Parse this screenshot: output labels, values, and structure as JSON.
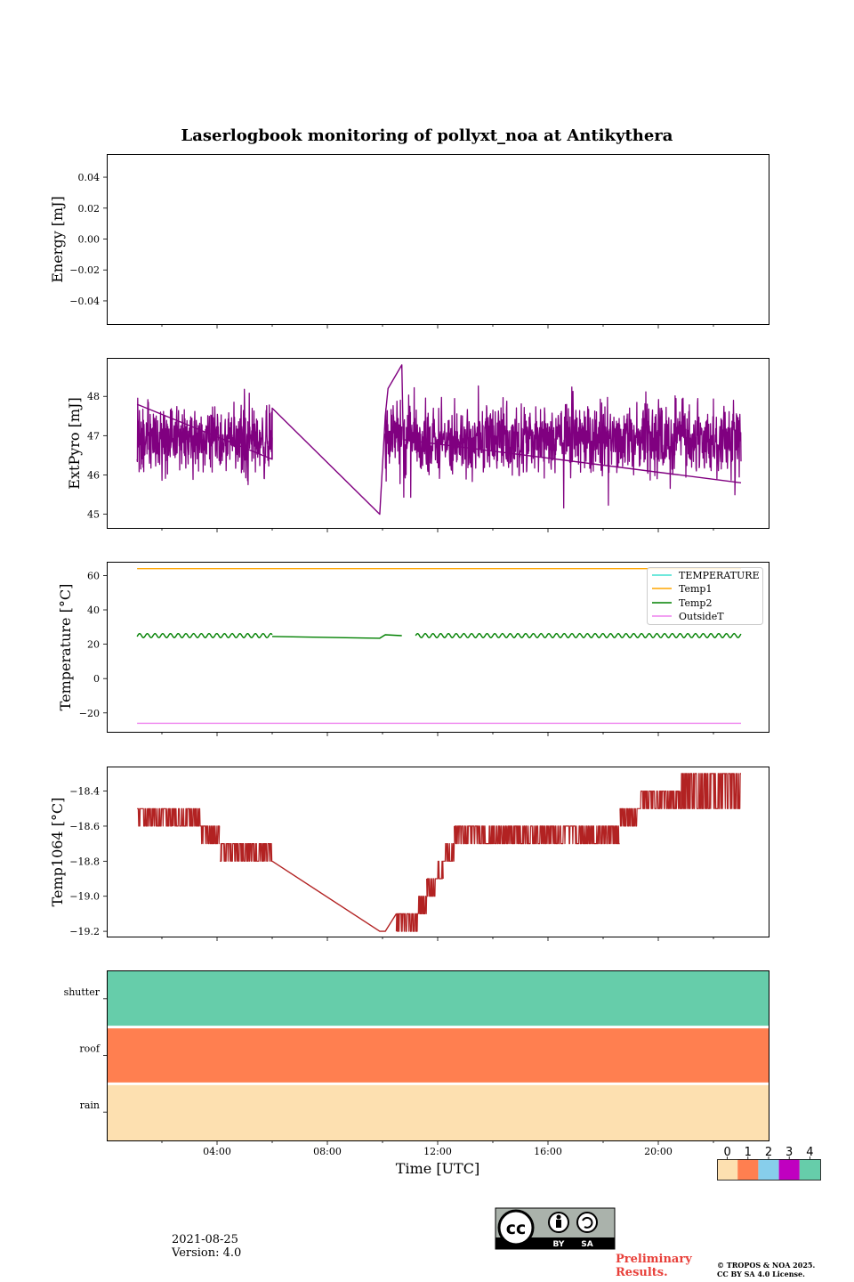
{
  "title": "Laserlogbook monitoring of pollyxt_noa at Antikythera",
  "x_axis": {
    "label": "Time [UTC]",
    "range_hours": [
      0,
      24
    ],
    "ticks": [
      {
        "h": 4,
        "label": "04:00"
      },
      {
        "h": 8,
        "label": "08:00"
      },
      {
        "h": 12,
        "label": "12:00"
      },
      {
        "h": 16,
        "label": "16:00"
      },
      {
        "h": 20,
        "label": "20:00"
      }
    ],
    "minor_hours": [
      2,
      6,
      10,
      14,
      18,
      22
    ]
  },
  "chart_data": [
    {
      "id": "energy",
      "type": "line",
      "ylabel": "Energy [mJ]",
      "ylim": [
        -0.055,
        0.055
      ],
      "yticks": [
        {
          "v": 0.04,
          "label": "0.04"
        },
        {
          "v": 0.02,
          "label": "0.02"
        },
        {
          "v": 0.0,
          "label": "0.00"
        },
        {
          "v": -0.02,
          "label": "−0.02"
        },
        {
          "v": -0.04,
          "label": "−0.04"
        }
      ],
      "series": []
    },
    {
      "id": "extpyro",
      "type": "line",
      "ylabel": "ExtPyro [mJ]",
      "ylim": [
        44.65,
        48.98
      ],
      "yticks": [
        {
          "v": 45,
          "label": "45"
        },
        {
          "v": 46,
          "label": "46"
        },
        {
          "v": 47,
          "label": "47"
        },
        {
          "v": 48,
          "label": "48"
        }
      ],
      "series": [
        {
          "name": "ExtPyro",
          "color": "#800080",
          "noise": {
            "segments": [
              [
                1.1,
                6.0
              ],
              [
                10.1,
                10.7
              ],
              [
                10.75,
                23.0
              ]
            ],
            "center": 46.9,
            "amplitude": 0.75,
            "min": 44.8,
            "max": 48.7
          },
          "points": [
            [
              1.1,
              47.8
            ],
            [
              6.0,
              46.4
            ],
            [
              6.0,
              47.7
            ],
            [
              9.9,
              45.0
            ],
            [
              10.1,
              47.5
            ],
            [
              10.2,
              48.2
            ],
            [
              10.7,
              48.8
            ],
            [
              10.75,
              46.9
            ],
            [
              23.0,
              45.8
            ]
          ]
        }
      ]
    },
    {
      "id": "temperature",
      "type": "line",
      "ylabel": "Temperature [°C]",
      "ylim": [
        -31,
        68
      ],
      "yticks": [
        {
          "v": 60,
          "label": "60"
        },
        {
          "v": 40,
          "label": "40"
        },
        {
          "v": 20,
          "label": "20"
        },
        {
          "v": 0,
          "label": "0"
        },
        {
          "v": -20,
          "label": "−20"
        }
      ],
      "legend_position": "top-right",
      "series": [
        {
          "name": "TEMPERATURE",
          "color": "#40e0d0",
          "points": []
        },
        {
          "name": "Temp1",
          "color": "#ffa500",
          "points": [
            [
              1.1,
              64
            ],
            [
              23.0,
              64
            ]
          ]
        },
        {
          "name": "Temp2",
          "color": "#008000",
          "oscillation": {
            "segments": [
              [
                1.1,
                6.0
              ],
              [
                11.2,
                23.0
              ]
            ],
            "center": 25,
            "amplitude": 1.2,
            "period_h": 0.28
          },
          "points": [
            [
              6.0,
              24.5
            ],
            [
              9.9,
              23.5
            ],
            [
              10.1,
              25.5
            ],
            [
              10.7,
              25.0
            ]
          ]
        },
        {
          "name": "OutsideT",
          "color": "#ee82ee",
          "points": [
            [
              1.1,
              -26
            ],
            [
              23.0,
              -26
            ]
          ]
        }
      ]
    },
    {
      "id": "temp1064",
      "type": "line",
      "ylabel": "Temp1064 [°C]",
      "ylim": [
        -19.23,
        -18.26
      ],
      "yticks": [
        {
          "v": -18.4,
          "label": "−18.4"
        },
        {
          "v": -18.6,
          "label": "−18.6"
        },
        {
          "v": -18.8,
          "label": "−18.8"
        },
        {
          "v": -19.0,
          "label": "−19.0"
        },
        {
          "v": -19.2,
          "label": "−19.2"
        }
      ],
      "series": [
        {
          "name": "Temp1064",
          "color": "#b22222",
          "steps": [
            [
              1.1,
              2.4,
              -18.6,
              -18.5
            ],
            [
              2.4,
              3.4,
              -18.6,
              -18.5
            ],
            [
              3.4,
              4.1,
              -18.7,
              -18.6
            ],
            [
              4.1,
              6.0,
              -18.8,
              -18.7
            ],
            [
              10.5,
              11.3,
              -19.2,
              -19.1
            ],
            [
              11.3,
              11.6,
              -19.1,
              -19.0
            ],
            [
              11.6,
              12.0,
              -19.0,
              -18.9
            ],
            [
              12.0,
              12.2,
              -18.9,
              -18.8
            ],
            [
              12.2,
              12.6,
              -18.8,
              -18.7
            ],
            [
              12.6,
              18.6,
              -18.7,
              -18.6
            ],
            [
              18.6,
              19.3,
              -18.6,
              -18.5
            ],
            [
              19.3,
              20.8,
              -18.5,
              -18.4
            ],
            [
              20.8,
              23.0,
              -18.5,
              -18.3
            ]
          ],
          "points": [
            [
              6.0,
              -18.8
            ],
            [
              9.9,
              -19.2
            ],
            [
              10.1,
              -19.2
            ],
            [
              10.5,
              -19.1
            ]
          ]
        }
      ]
    },
    {
      "id": "status",
      "type": "heatmap",
      "rows": [
        {
          "label": "shutter",
          "value": 4
        },
        {
          "label": "roof",
          "value": 1
        },
        {
          "label": "rain",
          "value": 0
        }
      ],
      "colorbar": {
        "labels": [
          "0",
          "1",
          "2",
          "3",
          "4"
        ],
        "colors": [
          "#fde0b0",
          "#ff7f50",
          "#87ceeb",
          "#c000c0",
          "#66cdaa"
        ]
      }
    }
  ],
  "footer": {
    "date": "2021-08-25",
    "version": "Version: 4.0",
    "license_badge": {
      "cc": "cc",
      "by": "BY",
      "sa": "SA"
    },
    "preliminary_line1": "Preliminary",
    "preliminary_line2": "Results.",
    "copyright_line1": "© TROPOS & NOA 2025.",
    "copyright_line2": "CC BY SA 4.0 License."
  }
}
